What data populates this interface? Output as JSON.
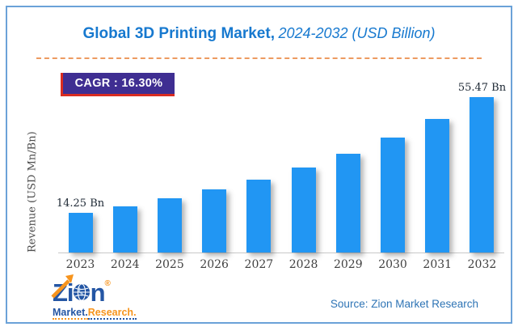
{
  "header": {
    "title_bold": "Global 3D Printing Market,",
    "title_italic": "2024-2032 (USD Billion)"
  },
  "badge": {
    "text": "CAGR : 16.30%"
  },
  "chart_data": {
    "type": "bar",
    "title": "Global 3D Printing Market, 2024-2032 (USD Billion)",
    "categories": [
      "2023",
      "2024",
      "2025",
      "2026",
      "2027",
      "2028",
      "2029",
      "2030",
      "2031",
      "2032"
    ],
    "values": [
      14.25,
      16.57,
      19.27,
      22.42,
      26.07,
      30.32,
      35.26,
      41.01,
      47.69,
      55.47
    ],
    "point_labels": [
      "14.25 Bn",
      "",
      "",
      "",
      "",
      "",
      "",
      "",
      "",
      "55.47 Bn"
    ],
    "xlabel": "",
    "ylabel": "Revenue (USD Mn/Bn)",
    "ylim": [
      0,
      60
    ],
    "grid": false,
    "legend": false,
    "cagr": "16.30%",
    "bar_color": "#2196F3"
  },
  "footer": {
    "source": "Source: Zion Market Research",
    "logo": {
      "letters_left": "Zi",
      "letters_right": "n",
      "registered_mark": "®",
      "word1": "Market.",
      "word2": "Research."
    }
  },
  "colors": {
    "frame_border": "#6BA2D8",
    "title_blue": "#1779cf",
    "divider_orange": "#ED9B61",
    "badge_purple": "#3F2E92",
    "badge_red": "#D92C21",
    "bar_blue": "#2196F3",
    "logo_blue": "#2456A4",
    "logo_orange": "#F7941D",
    "source_blue": "#2E74B5"
  }
}
